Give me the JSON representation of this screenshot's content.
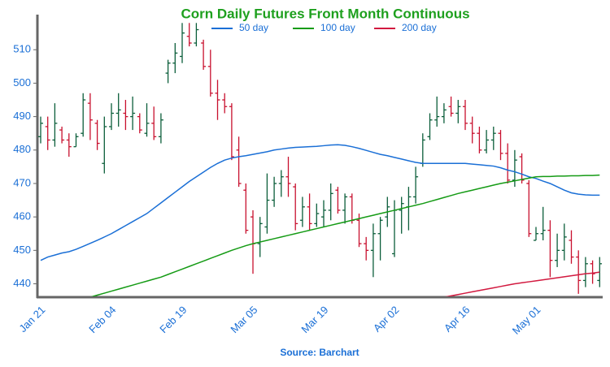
{
  "chart_data": {
    "type": "ohlc",
    "title": "Corn Daily Futures Front Month Continuous",
    "source": "Source: Barchart",
    "categories": [
      "Jan 21",
      null,
      null,
      null,
      null,
      null,
      null,
      null,
      null,
      null,
      "Feb 04",
      null,
      null,
      null,
      null,
      null,
      null,
      null,
      null,
      null,
      "Feb 19",
      null,
      null,
      null,
      null,
      null,
      null,
      null,
      null,
      null,
      "Mar 05",
      null,
      null,
      null,
      null,
      null,
      null,
      null,
      null,
      null,
      "Mar 19",
      null,
      null,
      null,
      null,
      null,
      null,
      null,
      null,
      null,
      "Apr 02",
      null,
      null,
      null,
      null,
      null,
      null,
      null,
      null,
      null,
      "Apr 16",
      null,
      null,
      null,
      null,
      null,
      null,
      null,
      null,
      null,
      "May 01",
      null,
      null,
      null,
      null,
      null,
      null,
      null,
      null,
      null
    ],
    "open": [
      484,
      487,
      483,
      486,
      483,
      481,
      485,
      494,
      488,
      476,
      487,
      491,
      491,
      490,
      490,
      485,
      488,
      484,
      503,
      506,
      508,
      514,
      512,
      512,
      505,
      497,
      495,
      493,
      480,
      468,
      460,
      452,
      457,
      465,
      470,
      472,
      469,
      459,
      463,
      458,
      460,
      462,
      468,
      462,
      466,
      459,
      452,
      450,
      455,
      460,
      449,
      462,
      463,
      466,
      476,
      484,
      489,
      490,
      493,
      491,
      493,
      488,
      485,
      480,
      483,
      485,
      479,
      471,
      478,
      470,
      453,
      455,
      456,
      447,
      450,
      453,
      448,
      441,
      446,
      441
    ],
    "high": [
      490,
      490,
      494,
      487,
      485,
      485,
      497,
      497,
      489,
      490,
      494,
      497,
      495,
      496,
      491,
      494,
      493,
      491,
      507,
      512,
      518,
      518,
      518,
      513,
      510,
      501,
      497,
      494,
      484,
      470,
      462,
      460,
      473,
      472,
      474,
      478,
      470,
      466,
      467,
      464,
      465,
      470,
      469,
      467,
      467,
      461,
      454,
      458,
      460,
      466,
      465,
      466,
      469,
      475,
      485,
      491,
      496,
      494,
      496,
      495,
      495,
      490,
      487,
      486,
      487,
      486,
      482,
      480,
      479,
      471,
      457,
      463,
      459,
      455,
      458,
      456,
      450,
      448,
      447,
      448
    ],
    "low": [
      482,
      480,
      481,
      482,
      478,
      481,
      484,
      483,
      480,
      473,
      486,
      487,
      486,
      486,
      485,
      484,
      483,
      482,
      500,
      503,
      506,
      511,
      511,
      504,
      496,
      489,
      491,
      477,
      469,
      455,
      443,
      448,
      455,
      463,
      466,
      466,
      456,
      457,
      456,
      457,
      457,
      459,
      461,
      458,
      458,
      451,
      447,
      442,
      447,
      457,
      448,
      455,
      456,
      464,
      475,
      483,
      487,
      488,
      490,
      488,
      486,
      482,
      479,
      479,
      480,
      477,
      470,
      469,
      470,
      454,
      453,
      453,
      442,
      445,
      447,
      446,
      437,
      439,
      440,
      439
    ],
    "close": [
      488,
      483,
      488,
      483,
      481,
      484,
      495,
      489,
      482,
      487,
      491,
      492,
      490,
      491,
      486,
      488,
      484,
      489,
      506,
      509,
      515,
      512,
      516,
      505,
      497,
      495,
      493,
      478,
      470,
      456,
      452,
      458,
      465,
      470,
      472,
      470,
      458,
      463,
      458,
      461,
      462,
      467,
      462,
      466,
      459,
      452,
      450,
      455,
      459,
      463,
      462,
      464,
      466,
      472,
      483,
      489,
      490,
      492,
      491,
      493,
      488,
      485,
      480,
      483,
      485,
      479,
      471,
      477,
      471,
      455,
      455,
      456,
      447,
      450,
      454,
      448,
      441,
      446,
      443,
      446
    ],
    "up_color": "#0b5e3a",
    "down_color": "#c8102e",
    "series": [
      {
        "name": "50 day",
        "color": "#1a6fd6",
        "values": [
          447,
          448,
          448.6,
          449.2,
          449.6,
          450.3,
          451.2,
          452.1,
          453,
          454,
          455,
          456.2,
          457.4,
          458.6,
          459.8,
          461,
          462.6,
          464.2,
          465.8,
          467.4,
          469,
          470.6,
          472,
          473.4,
          474.8,
          476,
          477,
          477.6,
          478,
          478.3,
          478.7,
          479.1,
          479.5,
          480,
          480.3,
          480.6,
          480.8,
          480.9,
          481,
          481.1,
          481.3,
          481.5,
          481.6,
          481.4,
          481,
          480.5,
          479.9,
          479.3,
          478.7,
          478.3,
          477.8,
          477.3,
          476.8,
          476.3,
          476,
          476,
          476,
          476,
          476,
          476,
          476,
          475.8,
          475.6,
          475.4,
          475.2,
          474.7,
          474,
          473.5,
          472.8,
          472,
          471.5,
          470.7,
          470,
          469,
          468,
          467.2,
          466.8,
          466.6,
          466.5,
          466.5
        ]
      },
      {
        "name": "100 day",
        "color": "#159b15",
        "values": [
          null,
          null,
          null,
          null,
          null,
          null,
          null,
          436,
          436.6,
          437.2,
          437.8,
          438.4,
          439,
          439.6,
          440.2,
          440.8,
          441.4,
          442,
          442.8,
          443.6,
          444.4,
          445.2,
          446,
          446.8,
          447.6,
          448.4,
          449.2,
          450,
          450.7,
          451.4,
          452,
          452.5,
          453,
          453.5,
          454,
          454.5,
          455,
          455.5,
          456,
          456.5,
          457,
          457.5,
          458,
          458.5,
          459,
          459.5,
          460,
          460.5,
          461,
          461.5,
          462,
          462.5,
          463,
          463.5,
          464,
          464.6,
          465.2,
          465.8,
          466.4,
          467,
          467.5,
          468,
          468.5,
          469,
          469.5,
          470,
          470.4,
          470.8,
          471.2,
          471.6,
          472,
          472.1,
          472.1,
          472.2,
          472.2,
          472.3,
          472.3,
          472.4,
          472.4,
          472.5
        ]
      },
      {
        "name": "200 day",
        "color": "#d2193f",
        "values": [
          null,
          null,
          null,
          null,
          null,
          null,
          null,
          null,
          null,
          null,
          null,
          null,
          null,
          null,
          null,
          null,
          null,
          null,
          null,
          null,
          null,
          null,
          null,
          null,
          null,
          null,
          null,
          null,
          null,
          null,
          null,
          null,
          null,
          null,
          null,
          null,
          null,
          null,
          null,
          null,
          null,
          null,
          null,
          null,
          null,
          null,
          null,
          null,
          null,
          null,
          null,
          null,
          null,
          null,
          null,
          null,
          null,
          436,
          436.4,
          436.8,
          437.2,
          437.6,
          438,
          438.4,
          438.8,
          439.2,
          439.6,
          440,
          440.3,
          440.6,
          440.9,
          441.2,
          441.5,
          441.8,
          442.1,
          442.4,
          442.7,
          443,
          443.2,
          443.5
        ]
      }
    ],
    "ylim": [
      436,
      520.5
    ],
    "yticks": [
      440,
      450,
      460,
      470,
      480,
      490,
      500,
      510
    ]
  }
}
